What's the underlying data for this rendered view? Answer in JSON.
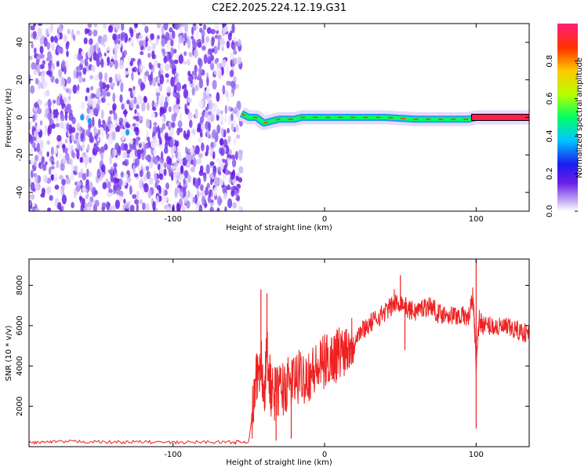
{
  "title": "C2E2.2025.224.12.19.G31",
  "chart_data": [
    {
      "type": "heatmap",
      "xlabel": "Height of straight line (km)",
      "ylabel": "Frequency (Hz)",
      "xlim": [
        -195,
        135
      ],
      "ylim": [
        -50,
        50
      ],
      "xticks": [
        -100,
        0,
        100
      ],
      "yticks": [
        -40,
        -20,
        0,
        20,
        40
      ],
      "noise_region": [
        -195,
        -55
      ],
      "signal_track": [
        [
          -55,
          2
        ],
        [
          -50,
          0
        ],
        [
          -45,
          0
        ],
        [
          -40,
          -3
        ],
        [
          -35,
          -2
        ],
        [
          -30,
          -1
        ],
        [
          -25,
          -1
        ],
        [
          -20,
          -1
        ],
        [
          -15,
          0
        ],
        [
          0,
          0
        ],
        [
          20,
          0
        ],
        [
          40,
          0
        ],
        [
          60,
          -1
        ],
        [
          80,
          -1
        ],
        [
          95,
          -1
        ],
        [
          100,
          0
        ],
        [
          135,
          0
        ]
      ],
      "colorbar": {
        "label": "Normalized spectral amplitude",
        "range": [
          0,
          1
        ],
        "ticks": [
          "0.0",
          "0.2",
          "0.4",
          "0.6",
          "0.8"
        ],
        "colors": [
          "#ffffff",
          "#c8b3f5",
          "#6a1ee6",
          "#1c1cf0",
          "#00c8ff",
          "#00ff66",
          "#b4ff00",
          "#ffc800",
          "#ff3200",
          "#ff1e78"
        ]
      }
    },
    {
      "type": "line",
      "xlabel": "Height of straight line (km)",
      "ylabel": "SNR (10 * v/v)",
      "xlim": [
        -195,
        135
      ],
      "ylim": [
        0,
        9300
      ],
      "xticks": [
        -100,
        0,
        100
      ],
      "yticks": [
        2000,
        4000,
        6000,
        8000
      ],
      "color": "#ee2222",
      "x": [
        -195,
        -180,
        -160,
        -140,
        -120,
        -100,
        -80,
        -60,
        -50,
        -45,
        -42,
        -40,
        -38,
        -35,
        -30,
        -25,
        -20,
        -15,
        -10,
        -5,
        0,
        5,
        10,
        15,
        20,
        25,
        30,
        35,
        40,
        45,
        50,
        55,
        60,
        65,
        70,
        75,
        80,
        85,
        90,
        95,
        98,
        100,
        102,
        105,
        110,
        115,
        120,
        125,
        130,
        135
      ],
      "y": [
        200,
        230,
        260,
        220,
        240,
        200,
        230,
        220,
        250,
        3200,
        4500,
        2000,
        5000,
        2500,
        2800,
        3000,
        3300,
        3500,
        3600,
        3800,
        4200,
        4400,
        4700,
        5000,
        5400,
        5800,
        6100,
        6400,
        6700,
        7000,
        7200,
        6800,
        6700,
        6900,
        7000,
        6600,
        6600,
        6500,
        6500,
        6400,
        7500,
        4000,
        6300,
        6000,
        6000,
        5900,
        5900,
        5800,
        5700,
        5600
      ],
      "spikes": [
        [
          -42,
          7800
        ],
        [
          -38,
          7600
        ],
        [
          -32,
          300
        ],
        [
          -22,
          400
        ],
        [
          46,
          7800
        ],
        [
          50,
          8500
        ],
        [
          53,
          4800
        ],
        [
          100,
          9300
        ],
        [
          100,
          900
        ]
      ]
    }
  ]
}
